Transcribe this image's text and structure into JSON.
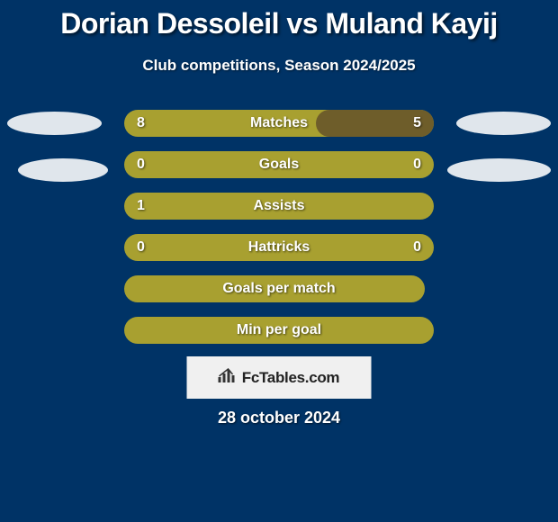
{
  "title": "Dorian Dessoleil vs Muland Kayij",
  "subtitle": "Club competitions, Season 2024/2025",
  "colors": {
    "page_bg": "#003366",
    "bar_olive": "#a8a030",
    "bar_brown": "#6e5d2a",
    "text": "#ffffff",
    "ellipse": "rgba(255,255,255,0.88)",
    "brand_bg": "#f0f0f0",
    "brand_text": "#222222"
  },
  "rows": [
    {
      "label": "Matches",
      "left": "8",
      "right": "5",
      "fill_pct": 100,
      "bg": "#a8a030",
      "overlay_pct": 38,
      "overlay_bg": "#6e5d2a",
      "overlay_side": "right"
    },
    {
      "label": "Goals",
      "left": "0",
      "right": "0",
      "fill_pct": 100,
      "bg": "#a8a030",
      "overlay_pct": 0,
      "overlay_bg": "#6e5d2a",
      "overlay_side": "right"
    },
    {
      "label": "Assists",
      "left": "1",
      "right": "",
      "fill_pct": 100,
      "bg": "#a8a030",
      "overlay_pct": 0,
      "overlay_bg": "#6e5d2a",
      "overlay_side": "right"
    },
    {
      "label": "Hattricks",
      "left": "0",
      "right": "0",
      "fill_pct": 100,
      "bg": "#a8a030",
      "overlay_pct": 0,
      "overlay_bg": "#6e5d2a",
      "overlay_side": "right"
    },
    {
      "label": "Goals per match",
      "left": "",
      "right": "",
      "fill_pct": 97,
      "bg": "#a8a030",
      "overlay_pct": 0,
      "overlay_bg": "#6e5d2a",
      "overlay_side": "right"
    },
    {
      "label": "Min per goal",
      "left": "",
      "right": "",
      "fill_pct": 100,
      "bg": "#a8a030",
      "overlay_pct": 0,
      "overlay_bg": "#6e5d2a",
      "overlay_side": "right"
    }
  ],
  "brand": {
    "text": "FcTables.com",
    "icon": "📊"
  },
  "date": "28 october 2024"
}
